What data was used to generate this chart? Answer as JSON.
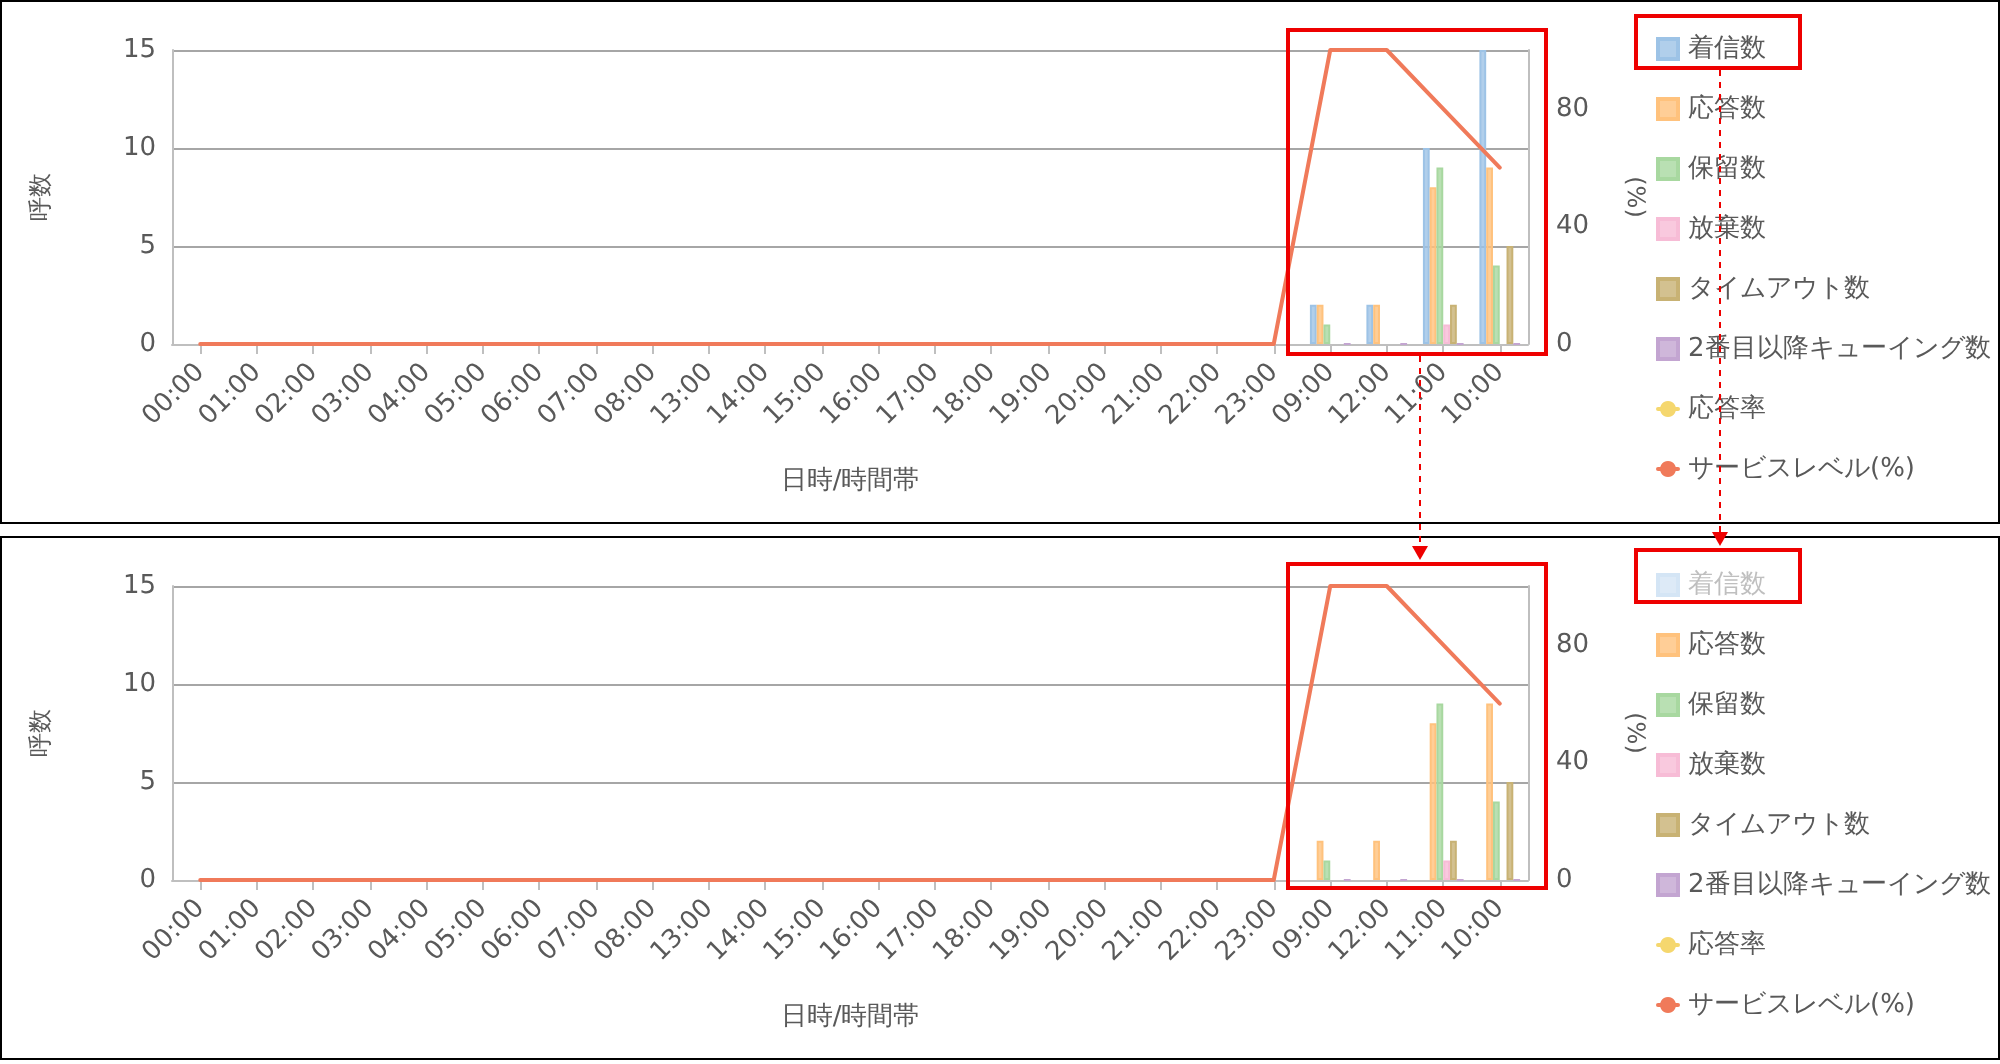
{
  "chart_data": [
    {
      "type": "bar",
      "xlabel": "日時/時間帯",
      "ylabel": "呼数",
      "y2label": "(%)",
      "categories": [
        "00:00",
        "01:00",
        "02:00",
        "03:00",
        "04:00",
        "05:00",
        "06:00",
        "07:00",
        "08:00",
        "13:00",
        "14:00",
        "15:00",
        "16:00",
        "17:00",
        "18:00",
        "19:00",
        "20:00",
        "21:00",
        "22:00",
        "23:00",
        "09:00",
        "12:00",
        "11:00",
        "10:00"
      ],
      "ylim": [
        0,
        15
      ],
      "yticks": [
        0,
        5,
        10,
        15
      ],
      "y2lim": [
        0,
        100
      ],
      "y2ticks": [
        0,
        40,
        80
      ],
      "grid": "y",
      "legend": "right",
      "marker": "none",
      "line_style": "solid",
      "series": [
        {
          "name": "着信数",
          "color": "#9dc3e6",
          "values": [
            null,
            null,
            null,
            null,
            null,
            null,
            null,
            null,
            null,
            null,
            null,
            null,
            null,
            null,
            null,
            null,
            null,
            null,
            null,
            null,
            2,
            2,
            10,
            15
          ]
        },
        {
          "name": "応答数",
          "color": "#ffc27d",
          "values": [
            null,
            null,
            null,
            null,
            null,
            null,
            null,
            null,
            null,
            null,
            null,
            null,
            null,
            null,
            null,
            null,
            null,
            null,
            null,
            null,
            2,
            2,
            8,
            9
          ]
        },
        {
          "name": "保留数",
          "color": "#a8d8a0",
          "values": [
            null,
            null,
            null,
            null,
            null,
            null,
            null,
            null,
            null,
            null,
            null,
            null,
            null,
            null,
            null,
            null,
            null,
            null,
            null,
            null,
            1,
            null,
            9,
            4
          ]
        },
        {
          "name": "放棄数",
          "color": "#f7bcd6",
          "values": [
            null,
            null,
            null,
            null,
            null,
            null,
            null,
            null,
            null,
            null,
            null,
            null,
            null,
            null,
            null,
            null,
            null,
            null,
            null,
            null,
            null,
            null,
            1,
            null
          ]
        },
        {
          "name": "タイムアウト数",
          "color": "#c8b274",
          "values": [
            null,
            null,
            null,
            null,
            null,
            null,
            null,
            null,
            null,
            null,
            null,
            null,
            null,
            null,
            null,
            null,
            null,
            null,
            null,
            null,
            null,
            null,
            2,
            5
          ]
        },
        {
          "name": "2番目以降キューイング数",
          "color": "#c3a5d1",
          "values": [
            null,
            null,
            null,
            null,
            null,
            null,
            null,
            null,
            null,
            null,
            null,
            null,
            null,
            null,
            null,
            null,
            null,
            null,
            null,
            null,
            0,
            0,
            0,
            0
          ]
        },
        {
          "name": "応答率",
          "type": "line",
          "axis": "y2",
          "color": "#f5d76e",
          "values": [
            null,
            null,
            null,
            null,
            null,
            null,
            null,
            null,
            null,
            null,
            null,
            null,
            null,
            null,
            null,
            null,
            null,
            null,
            null,
            null,
            null,
            null,
            null,
            null
          ]
        },
        {
          "name": "サービスレベル(%)",
          "type": "line",
          "axis": "y2",
          "color": "#f07a5a",
          "values": [
            0,
            0,
            0,
            0,
            0,
            0,
            0,
            0,
            0,
            0,
            0,
            0,
            0,
            0,
            0,
            0,
            0,
            0,
            0,
            0,
            100,
            100,
            80,
            60
          ]
        }
      ]
    },
    {
      "type": "bar",
      "xlabel": "日時/時間帯",
      "ylabel": "呼数",
      "y2label": "(%)",
      "categories": [
        "00:00",
        "01:00",
        "02:00",
        "03:00",
        "04:00",
        "05:00",
        "06:00",
        "07:00",
        "08:00",
        "13:00",
        "14:00",
        "15:00",
        "16:00",
        "17:00",
        "18:00",
        "19:00",
        "20:00",
        "21:00",
        "22:00",
        "23:00",
        "09:00",
        "12:00",
        "11:00",
        "10:00"
      ],
      "ylim": [
        0,
        15
      ],
      "yticks": [
        0,
        5,
        10,
        15
      ],
      "y2lim": [
        0,
        100
      ],
      "y2ticks": [
        0,
        40,
        80
      ],
      "grid": "y",
      "legend": "right",
      "marker": "none",
      "line_style": "solid",
      "series": [
        {
          "name": "着信数",
          "color": "#d4e5f5",
          "values": [
            null,
            null,
            null,
            null,
            null,
            null,
            null,
            null,
            null,
            null,
            null,
            null,
            null,
            null,
            null,
            null,
            null,
            null,
            null,
            null,
            null,
            null,
            null,
            null
          ]
        },
        {
          "name": "応答数",
          "color": "#ffc27d",
          "values": [
            null,
            null,
            null,
            null,
            null,
            null,
            null,
            null,
            null,
            null,
            null,
            null,
            null,
            null,
            null,
            null,
            null,
            null,
            null,
            null,
            2,
            2,
            8,
            9
          ]
        },
        {
          "name": "保留数",
          "color": "#a8d8a0",
          "values": [
            null,
            null,
            null,
            null,
            null,
            null,
            null,
            null,
            null,
            null,
            null,
            null,
            null,
            null,
            null,
            null,
            null,
            null,
            null,
            null,
            1,
            null,
            9,
            4
          ]
        },
        {
          "name": "放棄数",
          "color": "#f7bcd6",
          "values": [
            null,
            null,
            null,
            null,
            null,
            null,
            null,
            null,
            null,
            null,
            null,
            null,
            null,
            null,
            null,
            null,
            null,
            null,
            null,
            null,
            null,
            null,
            1,
            null
          ]
        },
        {
          "name": "タイムアウト数",
          "color": "#c8b274",
          "values": [
            null,
            null,
            null,
            null,
            null,
            null,
            null,
            null,
            null,
            null,
            null,
            null,
            null,
            null,
            null,
            null,
            null,
            null,
            null,
            null,
            null,
            null,
            2,
            5
          ]
        },
        {
          "name": "2番目以降キューイング数",
          "color": "#c3a5d1",
          "values": [
            null,
            null,
            null,
            null,
            null,
            null,
            null,
            null,
            null,
            null,
            null,
            null,
            null,
            null,
            null,
            null,
            null,
            null,
            null,
            null,
            0,
            0,
            0,
            0
          ]
        },
        {
          "name": "応答率",
          "type": "line",
          "axis": "y2",
          "color": "#f5d76e",
          "values": [
            null,
            null,
            null,
            null,
            null,
            null,
            null,
            null,
            null,
            null,
            null,
            null,
            null,
            null,
            null,
            null,
            null,
            null,
            null,
            null,
            null,
            null,
            null,
            null
          ]
        },
        {
          "name": "サービスレベル(%)",
          "type": "line",
          "axis": "y2",
          "color": "#f07a5a",
          "values": [
            0,
            0,
            0,
            0,
            0,
            0,
            0,
            0,
            0,
            0,
            0,
            0,
            0,
            0,
            0,
            0,
            0,
            0,
            0,
            0,
            100,
            100,
            80,
            60
          ]
        }
      ]
    }
  ]
}
